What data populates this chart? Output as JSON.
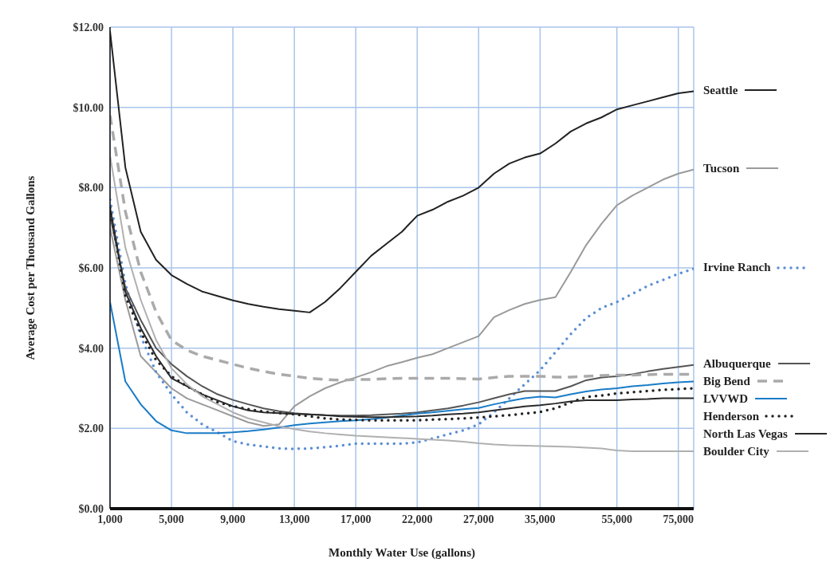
{
  "chart_data": {
    "type": "line",
    "xlabel": "Monthly Water Use (gallons)",
    "ylabel": "Average Cost per Thousand Gallons",
    "categories": [
      "1,000",
      null,
      null,
      null,
      "5,000",
      null,
      null,
      null,
      "9,000",
      null,
      null,
      null,
      "13,000",
      null,
      null,
      null,
      "17,000",
      null,
      null,
      null,
      "22,000",
      null,
      null,
      null,
      "27,000",
      null,
      null,
      null,
      "35,000",
      null,
      null,
      null,
      null,
      "55,000",
      null,
      null,
      null,
      "75,000",
      null
    ],
    "ylim": [
      0,
      12
    ],
    "yticks": [
      {
        "value": 0,
        "label": "$0.00"
      },
      {
        "value": 2,
        "label": "$2.00"
      },
      {
        "value": 4,
        "label": "$4.00"
      },
      {
        "value": 6,
        "label": "$6.00"
      },
      {
        "value": 8,
        "label": "$8.00"
      },
      {
        "value": 10,
        "label": "$10.00"
      },
      {
        "value": 12,
        "label": "$12.00"
      }
    ],
    "grid": true,
    "legend": "right",
    "marker": "none",
    "series": [
      {
        "name": "Seattle",
        "color": "#222222",
        "line_style": "solid",
        "values": [
          11.9,
          8.5,
          6.9,
          6.2,
          5.82,
          5.6,
          5.41,
          5.3,
          5.19,
          5.1,
          5.03,
          4.97,
          4.93,
          4.89,
          5.15,
          5.5,
          5.9,
          6.3,
          6.6,
          6.9,
          7.3,
          7.45,
          7.65,
          7.8,
          8.0,
          8.35,
          8.6,
          8.75,
          8.85,
          9.1,
          9.4,
          9.6,
          9.75,
          9.95,
          10.05,
          10.15,
          10.25,
          10.35,
          10.4
        ]
      },
      {
        "name": "Tucson",
        "color": "#9a9a9a",
        "line_style": "solid",
        "values": [
          7.0,
          5.2,
          3.8,
          3.4,
          3.0,
          2.75,
          2.6,
          2.45,
          2.3,
          2.15,
          2.06,
          2.1,
          2.55,
          2.8,
          3.0,
          3.15,
          3.27,
          3.4,
          3.55,
          3.65,
          3.76,
          3.85,
          4.0,
          4.15,
          4.3,
          4.77,
          4.95,
          5.1,
          5.2,
          5.27,
          5.9,
          6.57,
          7.1,
          7.56,
          7.8,
          8.0,
          8.2,
          8.35,
          8.45
        ]
      },
      {
        "name": "Irvine Ranch",
        "color": "#5b8fd4",
        "line_style": "dotted",
        "values": [
          7.7,
          5.6,
          4.3,
          3.4,
          2.85,
          2.4,
          2.1,
          1.9,
          1.68,
          1.6,
          1.55,
          1.5,
          1.49,
          1.5,
          1.53,
          1.57,
          1.62,
          1.62,
          1.62,
          1.62,
          1.65,
          1.75,
          1.85,
          1.95,
          2.1,
          2.4,
          2.75,
          3.1,
          3.45,
          3.9,
          4.35,
          4.75,
          5.0,
          5.15,
          5.35,
          5.55,
          5.7,
          5.85,
          5.98
        ]
      },
      {
        "name": "Albuquerque",
        "color": "#555555",
        "line_style": "solid",
        "values": [
          7.3,
          5.5,
          4.7,
          4.0,
          3.6,
          3.3,
          3.05,
          2.85,
          2.71,
          2.6,
          2.5,
          2.43,
          2.38,
          2.35,
          2.33,
          2.32,
          2.32,
          2.33,
          2.35,
          2.37,
          2.4,
          2.45,
          2.5,
          2.57,
          2.65,
          2.75,
          2.85,
          2.93,
          2.93,
          2.93,
          3.05,
          3.2,
          3.27,
          3.3,
          3.35,
          3.42,
          3.48,
          3.53,
          3.58
        ]
      },
      {
        "name": "Big Bend",
        "color": "#aaaaaa",
        "line_style": "dashed",
        "values": [
          9.8,
          7.4,
          5.9,
          4.9,
          4.2,
          3.95,
          3.8,
          3.7,
          3.6,
          3.5,
          3.42,
          3.35,
          3.3,
          3.25,
          3.22,
          3.2,
          3.22,
          3.22,
          3.24,
          3.25,
          3.25,
          3.25,
          3.25,
          3.24,
          3.23,
          3.27,
          3.3,
          3.3,
          3.3,
          3.28,
          3.28,
          3.3,
          3.32,
          3.33,
          3.33,
          3.34,
          3.35,
          3.35,
          3.35
        ]
      },
      {
        "name": "LVVWD",
        "color": "#1a7cc7",
        "line_style": "solid",
        "values": [
          5.15,
          3.17,
          2.6,
          2.18,
          1.95,
          1.88,
          1.88,
          1.88,
          1.9,
          1.93,
          1.97,
          2.02,
          2.08,
          2.12,
          2.15,
          2.18,
          2.2,
          2.23,
          2.27,
          2.32,
          2.37,
          2.4,
          2.44,
          2.48,
          2.51,
          2.6,
          2.68,
          2.75,
          2.79,
          2.77,
          2.85,
          2.92,
          2.97,
          3.0,
          3.05,
          3.08,
          3.12,
          3.15,
          3.17
        ]
      },
      {
        "name": "Henderson",
        "color": "#222222",
        "line_style": "dotted",
        "values": [
          7.5,
          5.3,
          4.4,
          3.7,
          3.3,
          3.05,
          2.85,
          2.65,
          2.55,
          2.48,
          2.42,
          2.38,
          2.35,
          2.3,
          2.25,
          2.22,
          2.21,
          2.2,
          2.2,
          2.2,
          2.2,
          2.22,
          2.23,
          2.25,
          2.27,
          2.3,
          2.33,
          2.37,
          2.41,
          2.5,
          2.65,
          2.78,
          2.82,
          2.87,
          2.9,
          2.93,
          2.96,
          2.98,
          3.0
        ]
      },
      {
        "name": "North Las Vegas",
        "color": "#2a2a2a",
        "line_style": "solid",
        "values": [
          7.5,
          5.4,
          4.5,
          3.8,
          3.25,
          3.05,
          2.85,
          2.7,
          2.55,
          2.45,
          2.4,
          2.38,
          2.36,
          2.35,
          2.33,
          2.3,
          2.29,
          2.28,
          2.28,
          2.29,
          2.3,
          2.32,
          2.35,
          2.37,
          2.4,
          2.45,
          2.5,
          2.55,
          2.58,
          2.62,
          2.67,
          2.7,
          2.7,
          2.7,
          2.72,
          2.73,
          2.75,
          2.75,
          2.75
        ]
      },
      {
        "name": "Boulder City",
        "color": "#b0b0b0",
        "line_style": "solid",
        "values": [
          8.8,
          6.5,
          5.2,
          4.2,
          3.5,
          3.1,
          2.8,
          2.6,
          2.4,
          2.25,
          2.15,
          2.05,
          1.98,
          1.92,
          1.88,
          1.85,
          1.82,
          1.8,
          1.78,
          1.76,
          1.74,
          1.72,
          1.7,
          1.67,
          1.63,
          1.6,
          1.58,
          1.57,
          1.56,
          1.55,
          1.54,
          1.52,
          1.5,
          1.45,
          1.43,
          1.43,
          1.43,
          1.43,
          1.43
        ]
      }
    ]
  }
}
